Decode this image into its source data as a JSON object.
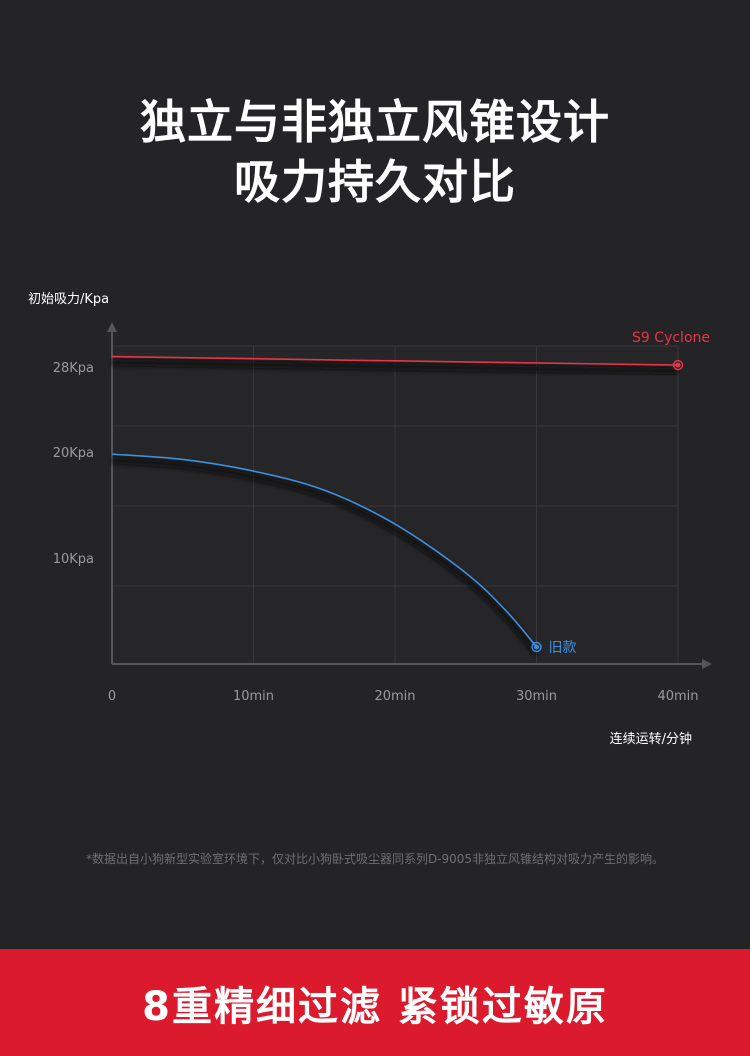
{
  "header": {
    "title_line1": "独立与非独立风锥设计",
    "title_line2": "吸力持久对比"
  },
  "chart_data": {
    "type": "line",
    "ylabel": "初始吸力/Kpa",
    "xlabel": "连续运转/分钟",
    "x_ticks": [
      {
        "value": 0,
        "label": "0"
      },
      {
        "value": 10,
        "label": "10min"
      },
      {
        "value": 20,
        "label": "20min"
      },
      {
        "value": 30,
        "label": "30min"
      },
      {
        "value": 40,
        "label": "40min"
      }
    ],
    "y_ticks": [
      {
        "value": 10,
        "label": "10Kpa"
      },
      {
        "value": 20,
        "label": "20Kpa"
      },
      {
        "value": 28,
        "label": "28Kpa"
      }
    ],
    "xlim": [
      0,
      40
    ],
    "ylim": [
      0,
      30
    ],
    "grid": true,
    "series": [
      {
        "name": "S9 Cyclone",
        "color": "#e8334a",
        "x": [
          0,
          10,
          20,
          30,
          40
        ],
        "y": [
          29.0,
          28.8,
          28.6,
          28.4,
          28.2
        ]
      },
      {
        "name": "旧款",
        "color": "#3d8fe0",
        "x": [
          0,
          5,
          10,
          15,
          20,
          25,
          28,
          30
        ],
        "y": [
          19.8,
          19.3,
          18.2,
          16.4,
          13.2,
          8.6,
          4.8,
          1.6
        ]
      }
    ]
  },
  "footnote": "*数据出自小狗新型实验室环境下，仅对比小狗卧式吸尘器同系列D-9005非独立风锥结构对吸力产生的影响。",
  "banner": {
    "text": "8重精细过滤 紧锁过敏原",
    "color": "#dc1a2e"
  }
}
